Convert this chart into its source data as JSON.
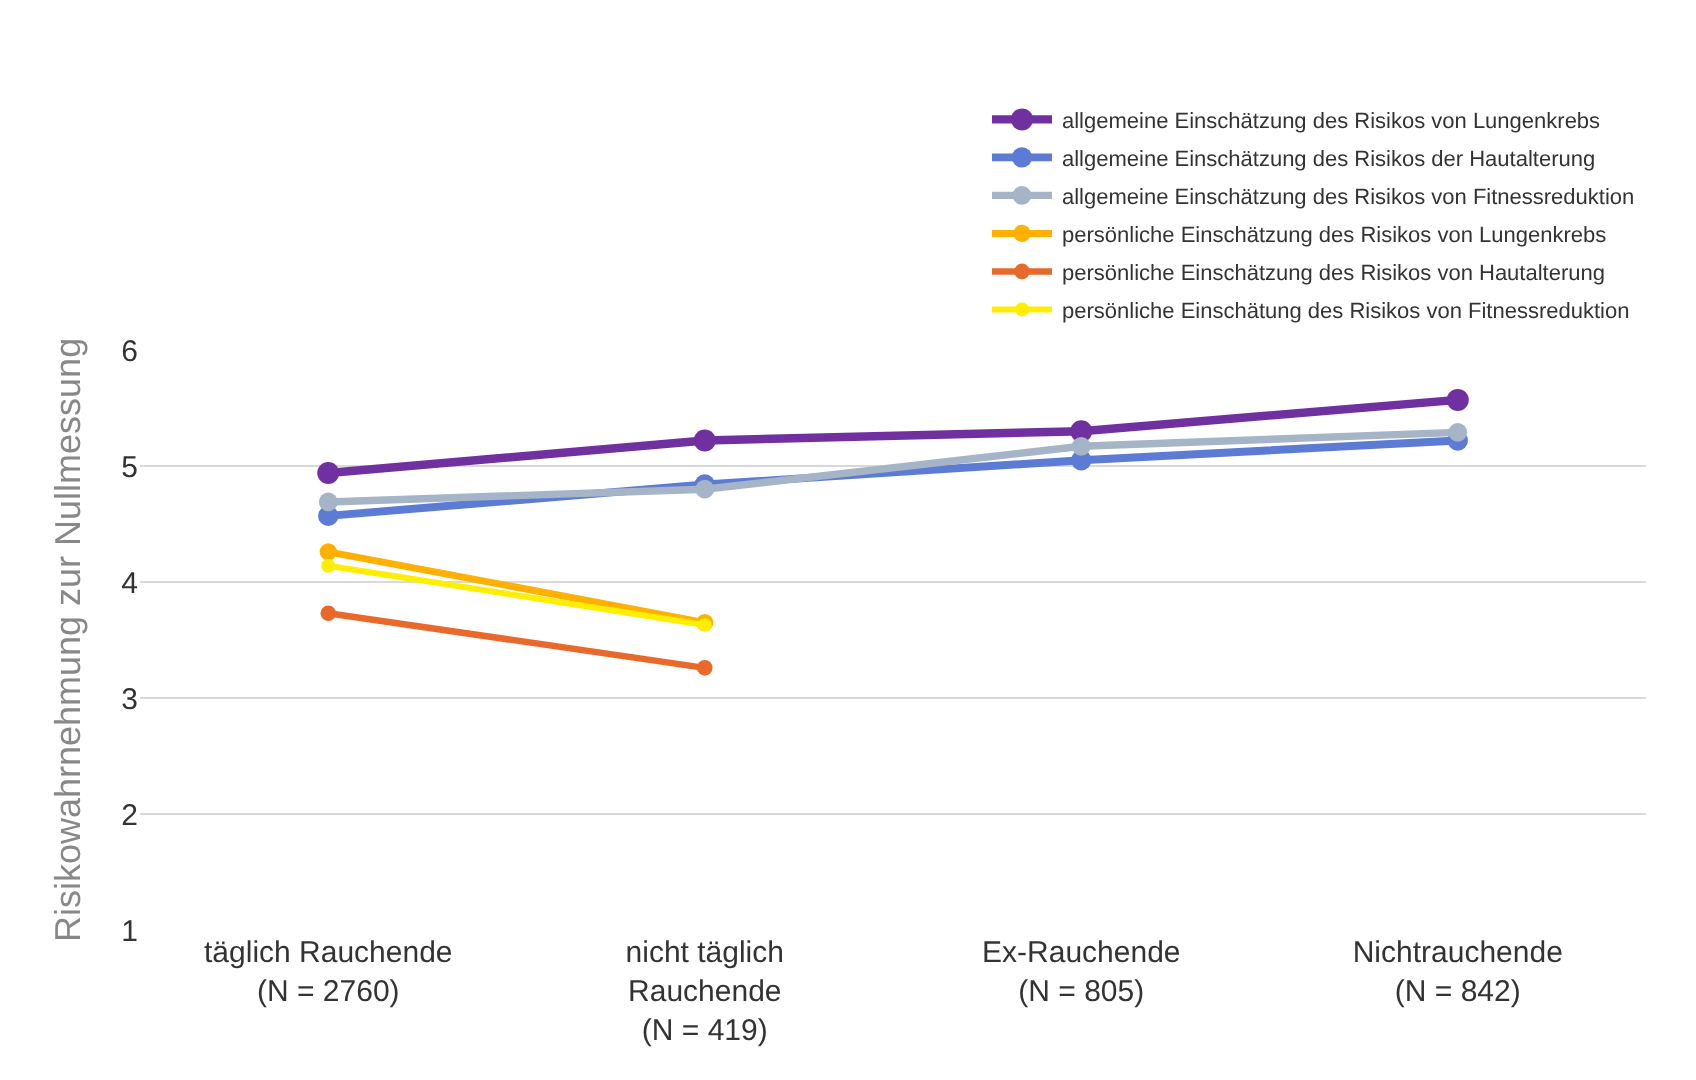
{
  "chart_data": {
    "type": "line",
    "ylabel": "Risikowahrnehmung zur Nullmessung",
    "categories": [
      "täglich Rauchende\n(N = 2760)",
      "nicht täglich\nRauchende\n(N = 419)",
      "Ex-Rauchende\n(N = 805)",
      "Nichtrauchende\n(N = 842)"
    ],
    "series": [
      {
        "name": "allgemeine Einschätzung des Risikos von Lungenkrebs",
        "color": "#7030a0",
        "values": [
          4.94,
          5.22,
          5.3,
          5.57
        ]
      },
      {
        "name": "allgemeine Einschätzung des Risikos der Hautalterung",
        "color": "#5b7bd5",
        "values": [
          4.57,
          4.84,
          5.05,
          5.22
        ]
      },
      {
        "name": "allgemeine Einschätzung des Risikos von Fitnessreduktion",
        "color": "#a5b4c6",
        "values": [
          4.69,
          4.8,
          5.17,
          5.29
        ]
      },
      {
        "name": "persönliche Einschätzung des Risikos von Lungenkrebs",
        "color": "#ffb000",
        "values": [
          4.26,
          3.65,
          null,
          null
        ]
      },
      {
        "name": "persönliche Einschätzung des Risikos von Hautalterung",
        "color": "#e8692a",
        "values": [
          3.73,
          3.26,
          null,
          null
        ]
      },
      {
        "name": "persönliche Einschätung des Risikos von Fitnessreduktion",
        "color": "#ffee00",
        "values": [
          4.14,
          3.63,
          null,
          null
        ]
      }
    ],
    "ylim": [
      1,
      6
    ],
    "yticks": [
      1,
      2,
      3,
      4,
      5,
      6
    ],
    "grid": "y",
    "legend": "top right",
    "marker": "circle",
    "line_style": "solid"
  }
}
